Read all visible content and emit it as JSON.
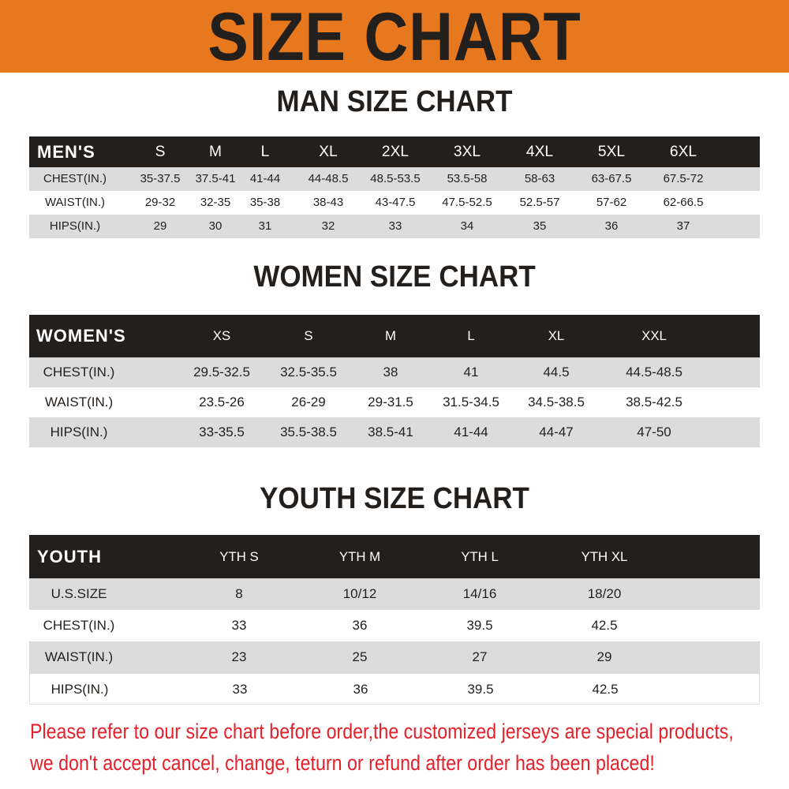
{
  "title": "SIZE CHART",
  "colors": {
    "banner": "#e8781e",
    "header_row": "#231f1c",
    "stripe": "#dcdcdc",
    "note": "#e5202a"
  },
  "men": {
    "title": "MAN SIZE CHART",
    "header": [
      "MEN'S",
      "S",
      "M",
      "L",
      "XL",
      "2XL",
      "3XL",
      "4XL",
      "5XL",
      "6XL"
    ],
    "rows": [
      [
        "CHEST(IN.)",
        "35-37.5",
        "37.5-41",
        "41-44",
        "44-48.5",
        "48.5-53.5",
        "53.5-58",
        "58-63",
        "63-67.5",
        "67.5-72"
      ],
      [
        "WAIST(IN.)",
        "29-32",
        "32-35",
        "35-38",
        "38-43",
        "43-47.5",
        "47.5-52.5",
        "52.5-57",
        "57-62",
        "62-66.5"
      ],
      [
        "HIPS(IN.)",
        "29",
        "30",
        "31",
        "32",
        "33",
        "34",
        "35",
        "36",
        "37"
      ]
    ]
  },
  "women": {
    "title": "WOMEN SIZE CHART",
    "header": [
      "WOMEN'S",
      "XS",
      "S",
      "M",
      "L",
      "XL",
      "XXL"
    ],
    "rows": [
      [
        "CHEST(IN.)",
        "29.5-32.5",
        "32.5-35.5",
        "38",
        "41",
        "44.5",
        "44.5-48.5"
      ],
      [
        "WAIST(IN.)",
        "23.5-26",
        "26-29",
        "29-31.5",
        "31.5-34.5",
        "34.5-38.5",
        "38.5-42.5"
      ],
      [
        "HIPS(IN.)",
        "33-35.5",
        "35.5-38.5",
        "38.5-41",
        "41-44",
        "44-47",
        "47-50"
      ]
    ]
  },
  "youth": {
    "title": "YOUTH SIZE CHART",
    "header": [
      "YOUTH",
      "YTH S",
      "YTH M",
      "YTH L",
      "YTH XL"
    ],
    "rows": [
      [
        "U.S.SIZE",
        "8",
        "10/12",
        "14/16",
        "18/20"
      ],
      [
        "CHEST(IN.)",
        "33",
        "36",
        "39.5",
        "42.5"
      ],
      [
        "WAIST(IN.)",
        "23",
        "25",
        "27",
        "29"
      ],
      [
        "HIPS(IN.)",
        "33",
        "36",
        "39.5",
        "42.5"
      ]
    ]
  },
  "notice": [
    "Please refer to our size chart before order,the customized jerseys are special products,",
    "we don't accept cancel, change, teturn or refund after order has been placed!"
  ]
}
